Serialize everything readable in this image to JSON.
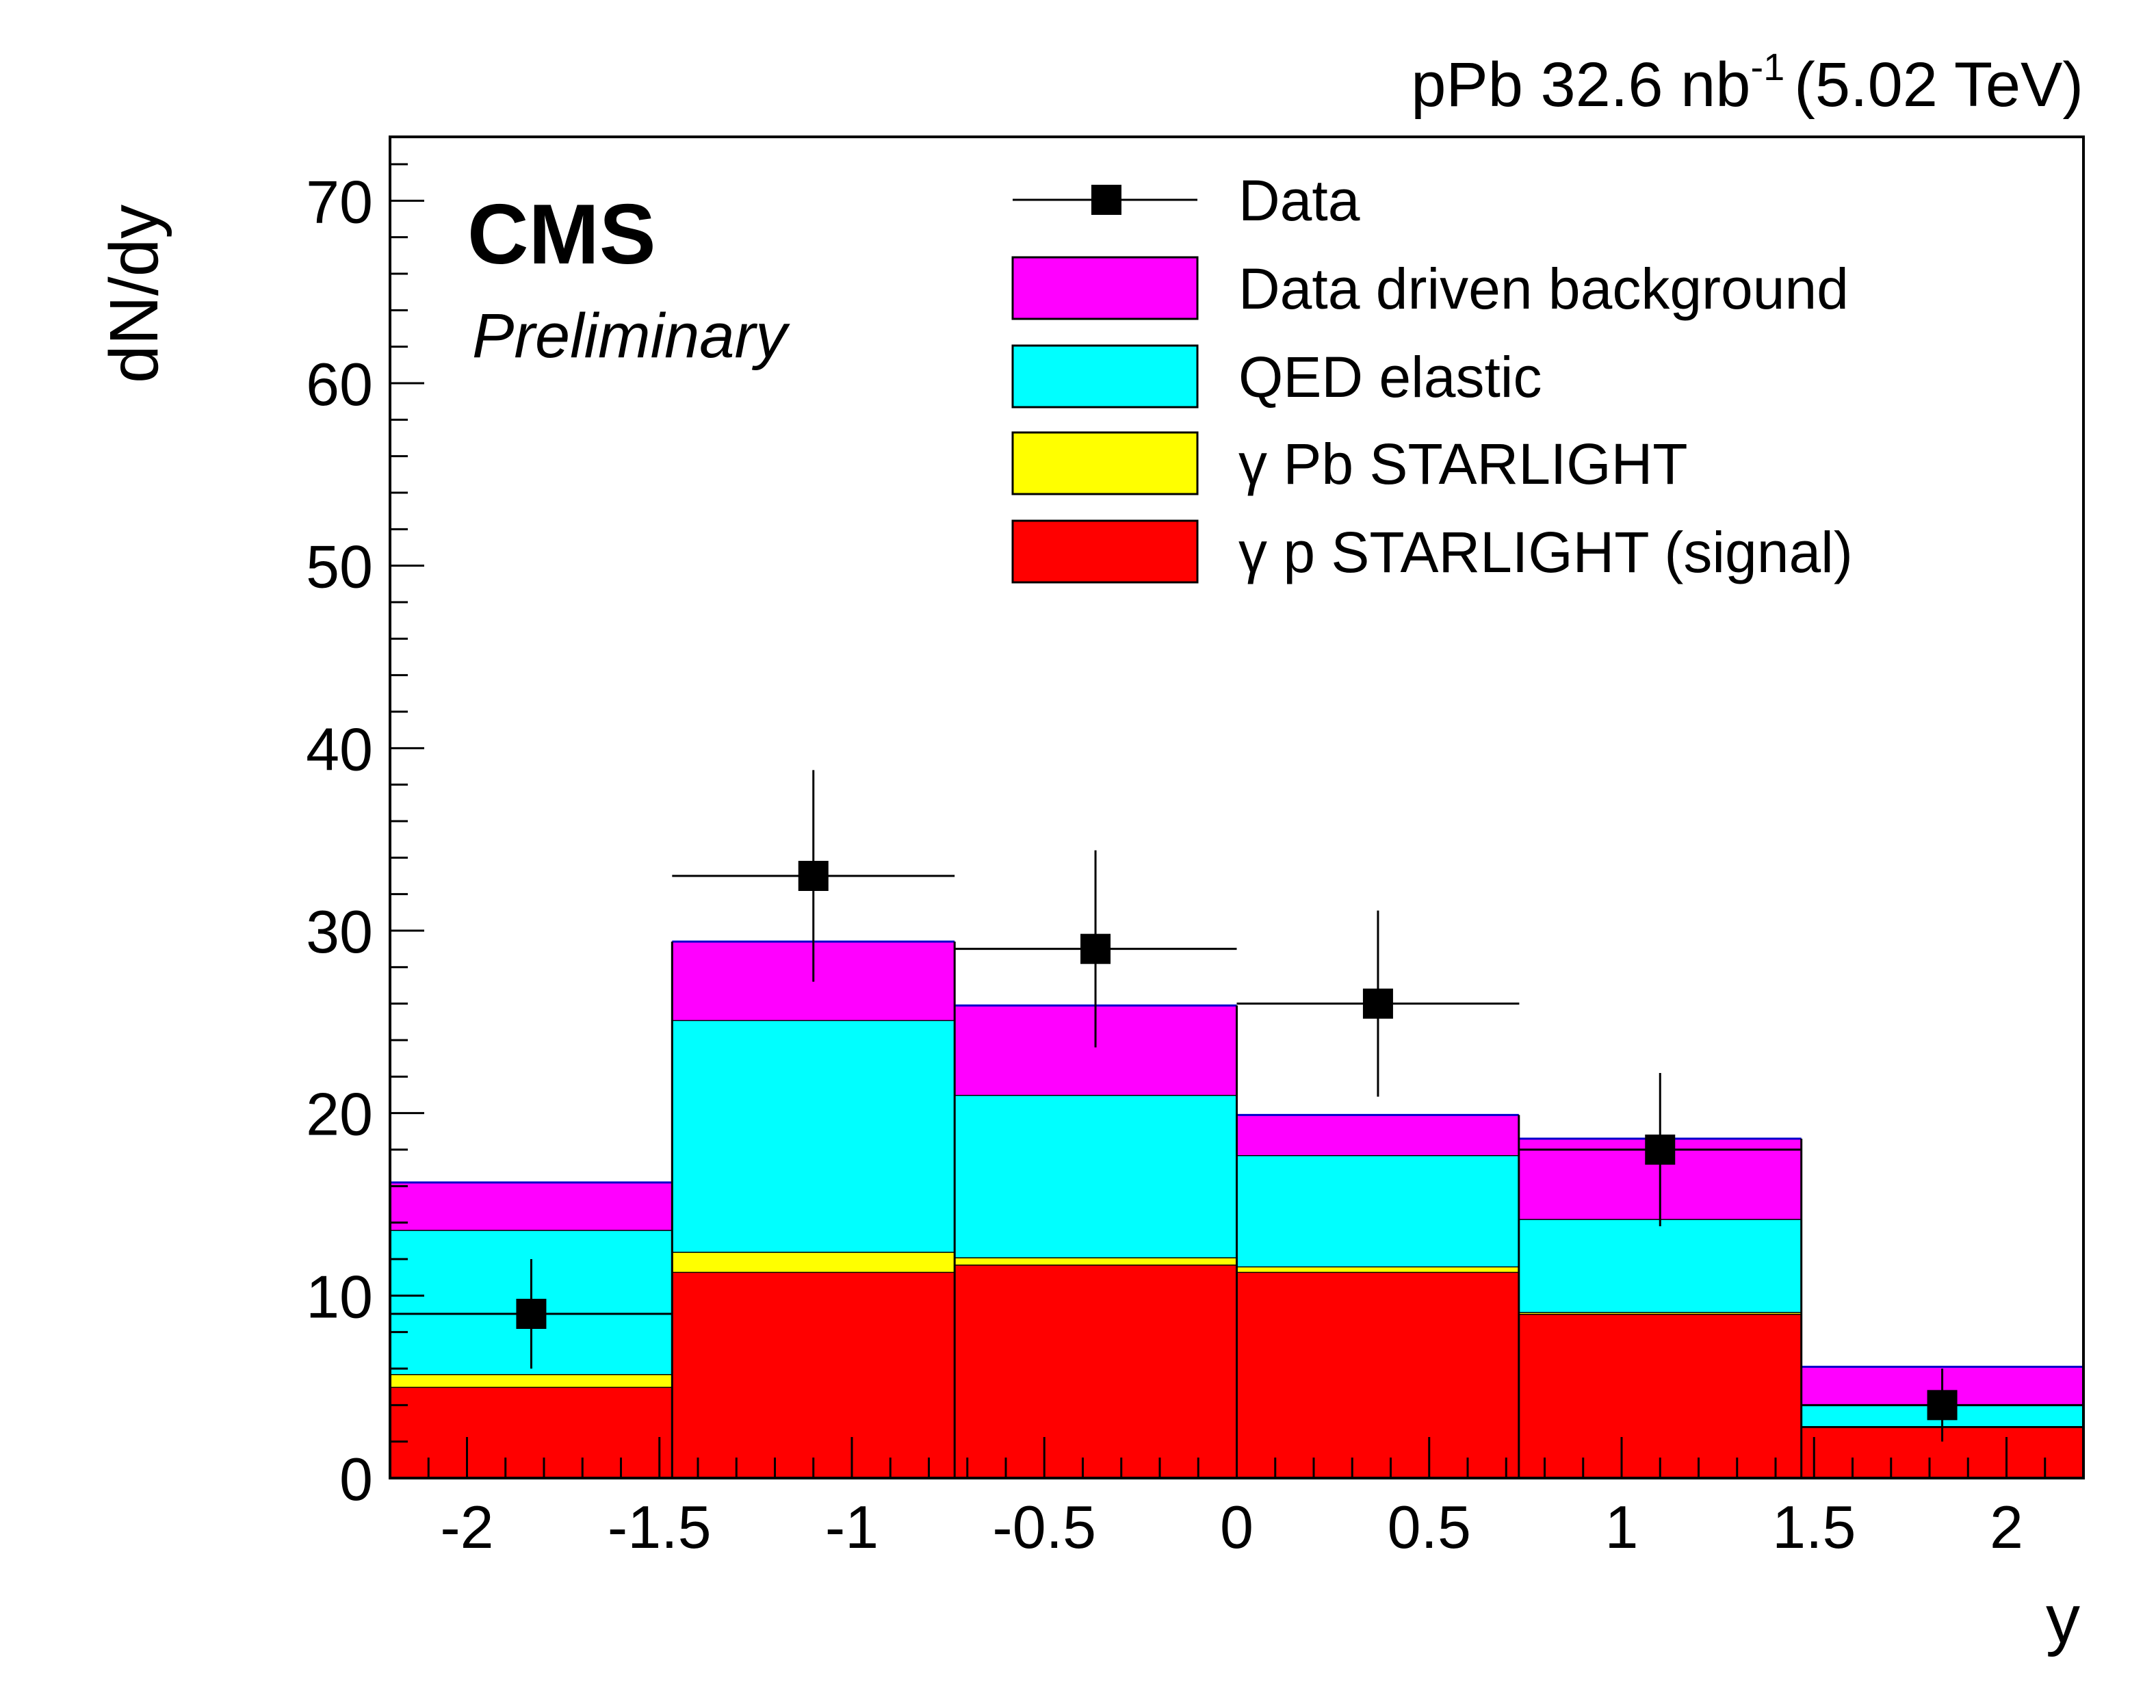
{
  "chart_data": {
    "type": "stacked-histogram",
    "title": "pPb 32.6 nb^-1 (5.02 TeV)",
    "header": {
      "left": "pPb 32.6 nb",
      "superscript": "-1",
      "right": "(5.02 TeV)"
    },
    "experiment_label": "CMS",
    "status_label": "Preliminary",
    "xlabel": "y",
    "ylabel": "dN/dy",
    "xlim": [
      -2.2,
      2.2
    ],
    "ylim": [
      0,
      73.5
    ],
    "xticks": [
      {
        "value": -2,
        "label": "-2"
      },
      {
        "value": -1.5,
        "label": "-1.5"
      },
      {
        "value": -1,
        "label": "-1"
      },
      {
        "value": -0.5,
        "label": "-0.5"
      },
      {
        "value": 0,
        "label": "0"
      },
      {
        "value": 0.5,
        "label": "0.5"
      },
      {
        "value": 1,
        "label": "1"
      },
      {
        "value": 1.5,
        "label": "1.5"
      },
      {
        "value": 2,
        "label": "2"
      }
    ],
    "yticks": [
      {
        "value": 0,
        "label": "0"
      },
      {
        "value": 10,
        "label": "10"
      },
      {
        "value": 20,
        "label": "20"
      },
      {
        "value": 30,
        "label": "30"
      },
      {
        "value": 40,
        "label": "40"
      },
      {
        "value": 50,
        "label": "50"
      },
      {
        "value": 60,
        "label": "60"
      },
      {
        "value": 70,
        "label": "70"
      }
    ],
    "bin_edges": [
      -2.2,
      -1.467,
      -0.733,
      0.0,
      0.733,
      1.467,
      2.2
    ],
    "stack": [
      {
        "name": "γ p STARLIGHT (signal)",
        "color": "#ff0000",
        "values": [
          5.0,
          11.3,
          11.7,
          11.3,
          9.0,
          2.8
        ]
      },
      {
        "name": "γ Pb STARLIGHT",
        "color": "#ffff00",
        "values": [
          0.7,
          1.1,
          0.4,
          0.3,
          0.1,
          0.05
        ]
      },
      {
        "name": "QED elastic",
        "color": "#00ffff",
        "values": [
          7.9,
          12.7,
          8.9,
          6.1,
          5.1,
          1.15
        ]
      },
      {
        "name": "Data driven background",
        "color": "#ff00ff",
        "values": [
          2.6,
          4.3,
          4.9,
          2.2,
          4.4,
          2.1
        ]
      }
    ],
    "stack_totals": [
      16.2,
      29.4,
      25.9,
      19.9,
      18.6,
      6.1
    ],
    "data": {
      "name": "Data",
      "x": [
        -1.833,
        -1.1,
        -0.367,
        0.367,
        1.1,
        1.833
      ],
      "y": [
        9,
        33,
        29,
        26,
        18,
        4
      ],
      "yerr_low": [
        3.0,
        5.8,
        5.4,
        5.1,
        4.2,
        2.0
      ],
      "yerr_high": [
        3.0,
        5.8,
        5.4,
        5.1,
        4.2,
        2.0
      ],
      "xerr": [
        0.367,
        0.367,
        0.367,
        0.367,
        0.367,
        0.367
      ]
    },
    "legend": {
      "placement": "top-right",
      "entries": [
        {
          "label": "Data",
          "kind": "marker"
        },
        {
          "label": "Data driven background",
          "kind": "box",
          "color": "#ff00ff"
        },
        {
          "label": "QED elastic",
          "kind": "box",
          "color": "#00ffff"
        },
        {
          "label": "γ Pb STARLIGHT",
          "kind": "box",
          "color": "#ffff00"
        },
        {
          "label": "γ p STARLIGHT (signal)",
          "kind": "box",
          "color": "#ff0000"
        }
      ]
    },
    "grid": false
  }
}
